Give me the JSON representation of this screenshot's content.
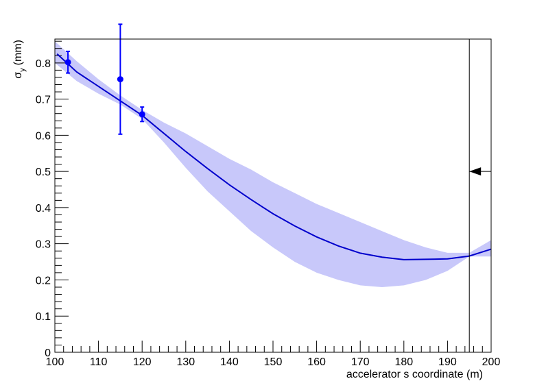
{
  "chart_data": {
    "type": "line",
    "xlabel": "accelerator s coordinate (m)",
    "ylabel": {
      "symbol": "σ",
      "subscript": "y",
      "unit": "(mm)"
    },
    "xlim": [
      100,
      200
    ],
    "ylim": [
      0,
      0.866
    ],
    "x_ticks": [
      100,
      110,
      120,
      130,
      140,
      150,
      160,
      170,
      180,
      190,
      200
    ],
    "x_tick_labels": [
      "100",
      "110",
      "120",
      "130",
      "140",
      "150",
      "160",
      "170",
      "180",
      "190",
      "200"
    ],
    "y_ticks": [
      0,
      0.1,
      0.2,
      0.3,
      0.4,
      0.5,
      0.6,
      0.7,
      0.8
    ],
    "y_tick_labels": [
      "0",
      "0.1",
      "0.2",
      "0.3",
      "0.4",
      "0.5",
      "0.6",
      "0.7",
      "0.8"
    ],
    "grid": false,
    "colors": {
      "fit": "#0000cc",
      "band": "#c8c8fa",
      "points": "#0000ff",
      "marker": "#000000"
    },
    "fit_curve": {
      "x": [
        100.5,
        105,
        110,
        115,
        120,
        125,
        130,
        135,
        140,
        145,
        150,
        155,
        160,
        165,
        170,
        175,
        180,
        185,
        190,
        195,
        200
      ],
      "y": [
        0.825,
        0.775,
        0.735,
        0.695,
        0.655,
        0.605,
        0.555,
        0.508,
        0.463,
        0.422,
        0.383,
        0.349,
        0.319,
        0.294,
        0.274,
        0.263,
        0.256,
        0.257,
        0.258,
        0.266,
        0.285
      ]
    },
    "band": {
      "x": [
        100,
        105,
        110,
        115,
        120,
        125,
        130,
        135,
        140,
        145,
        150,
        155,
        160,
        165,
        170,
        175,
        180,
        185,
        190,
        195,
        200
      ],
      "upper": [
        0.86,
        0.805,
        0.755,
        0.71,
        0.67,
        0.635,
        0.605,
        0.57,
        0.535,
        0.505,
        0.47,
        0.44,
        0.41,
        0.385,
        0.36,
        0.335,
        0.31,
        0.29,
        0.275,
        0.275,
        0.31
      ],
      "lower": [
        0.8,
        0.75,
        0.715,
        0.685,
        0.645,
        0.58,
        0.51,
        0.445,
        0.39,
        0.335,
        0.29,
        0.25,
        0.22,
        0.2,
        0.185,
        0.18,
        0.185,
        0.2,
        0.225,
        0.265,
        0.265
      ]
    },
    "points": [
      {
        "x": 103.0,
        "y": 0.802,
        "err": 0.03
      },
      {
        "x": 115.0,
        "y": 0.755,
        "err": 0.152
      },
      {
        "x": 120.0,
        "y": 0.658,
        "err": 0.02
      }
    ],
    "marker": {
      "x": 195.0,
      "y": 0.5,
      "direction": "left"
    }
  }
}
